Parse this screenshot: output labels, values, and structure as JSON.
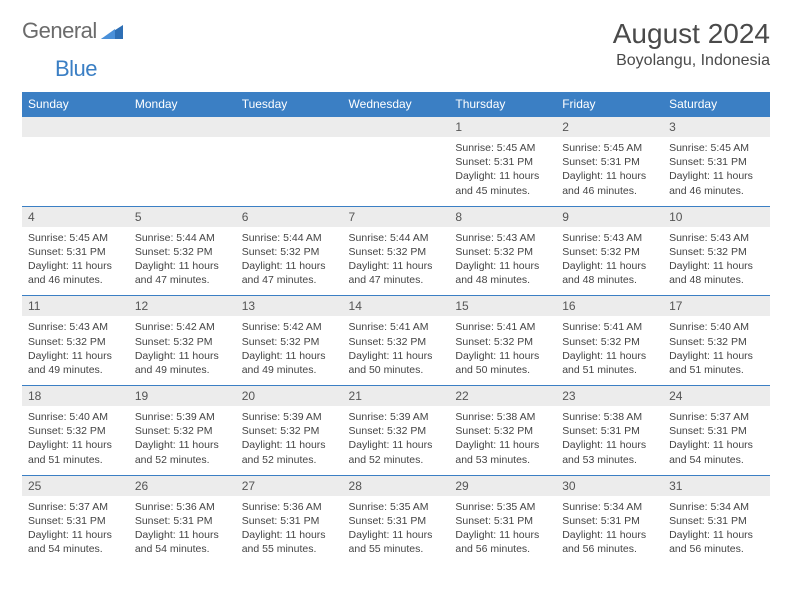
{
  "brand": {
    "part1": "General",
    "part2": "Blue"
  },
  "title": "August 2024",
  "location": "Boyolangu, Indonesia",
  "colors": {
    "header_bg": "#3b7fc4",
    "header_text": "#ffffff",
    "daynum_bg": "#ececec",
    "border": "#3b7fc4",
    "text": "#444444",
    "brand_gray": "#6b6b6b",
    "brand_blue": "#3b7fc4"
  },
  "daysOfWeek": [
    "Sunday",
    "Monday",
    "Tuesday",
    "Wednesday",
    "Thursday",
    "Friday",
    "Saturday"
  ],
  "weeks": [
    {
      "nums": [
        "",
        "",
        "",
        "",
        "1",
        "2",
        "3"
      ],
      "cells": [
        null,
        null,
        null,
        null,
        {
          "sunrise": "Sunrise: 5:45 AM",
          "sunset": "Sunset: 5:31 PM",
          "daylight": "Daylight: 11 hours and 45 minutes."
        },
        {
          "sunrise": "Sunrise: 5:45 AM",
          "sunset": "Sunset: 5:31 PM",
          "daylight": "Daylight: 11 hours and 46 minutes."
        },
        {
          "sunrise": "Sunrise: 5:45 AM",
          "sunset": "Sunset: 5:31 PM",
          "daylight": "Daylight: 11 hours and 46 minutes."
        }
      ]
    },
    {
      "nums": [
        "4",
        "5",
        "6",
        "7",
        "8",
        "9",
        "10"
      ],
      "cells": [
        {
          "sunrise": "Sunrise: 5:45 AM",
          "sunset": "Sunset: 5:31 PM",
          "daylight": "Daylight: 11 hours and 46 minutes."
        },
        {
          "sunrise": "Sunrise: 5:44 AM",
          "sunset": "Sunset: 5:32 PM",
          "daylight": "Daylight: 11 hours and 47 minutes."
        },
        {
          "sunrise": "Sunrise: 5:44 AM",
          "sunset": "Sunset: 5:32 PM",
          "daylight": "Daylight: 11 hours and 47 minutes."
        },
        {
          "sunrise": "Sunrise: 5:44 AM",
          "sunset": "Sunset: 5:32 PM",
          "daylight": "Daylight: 11 hours and 47 minutes."
        },
        {
          "sunrise": "Sunrise: 5:43 AM",
          "sunset": "Sunset: 5:32 PM",
          "daylight": "Daylight: 11 hours and 48 minutes."
        },
        {
          "sunrise": "Sunrise: 5:43 AM",
          "sunset": "Sunset: 5:32 PM",
          "daylight": "Daylight: 11 hours and 48 minutes."
        },
        {
          "sunrise": "Sunrise: 5:43 AM",
          "sunset": "Sunset: 5:32 PM",
          "daylight": "Daylight: 11 hours and 48 minutes."
        }
      ]
    },
    {
      "nums": [
        "11",
        "12",
        "13",
        "14",
        "15",
        "16",
        "17"
      ],
      "cells": [
        {
          "sunrise": "Sunrise: 5:43 AM",
          "sunset": "Sunset: 5:32 PM",
          "daylight": "Daylight: 11 hours and 49 minutes."
        },
        {
          "sunrise": "Sunrise: 5:42 AM",
          "sunset": "Sunset: 5:32 PM",
          "daylight": "Daylight: 11 hours and 49 minutes."
        },
        {
          "sunrise": "Sunrise: 5:42 AM",
          "sunset": "Sunset: 5:32 PM",
          "daylight": "Daylight: 11 hours and 49 minutes."
        },
        {
          "sunrise": "Sunrise: 5:41 AM",
          "sunset": "Sunset: 5:32 PM",
          "daylight": "Daylight: 11 hours and 50 minutes."
        },
        {
          "sunrise": "Sunrise: 5:41 AM",
          "sunset": "Sunset: 5:32 PM",
          "daylight": "Daylight: 11 hours and 50 minutes."
        },
        {
          "sunrise": "Sunrise: 5:41 AM",
          "sunset": "Sunset: 5:32 PM",
          "daylight": "Daylight: 11 hours and 51 minutes."
        },
        {
          "sunrise": "Sunrise: 5:40 AM",
          "sunset": "Sunset: 5:32 PM",
          "daylight": "Daylight: 11 hours and 51 minutes."
        }
      ]
    },
    {
      "nums": [
        "18",
        "19",
        "20",
        "21",
        "22",
        "23",
        "24"
      ],
      "cells": [
        {
          "sunrise": "Sunrise: 5:40 AM",
          "sunset": "Sunset: 5:32 PM",
          "daylight": "Daylight: 11 hours and 51 minutes."
        },
        {
          "sunrise": "Sunrise: 5:39 AM",
          "sunset": "Sunset: 5:32 PM",
          "daylight": "Daylight: 11 hours and 52 minutes."
        },
        {
          "sunrise": "Sunrise: 5:39 AM",
          "sunset": "Sunset: 5:32 PM",
          "daylight": "Daylight: 11 hours and 52 minutes."
        },
        {
          "sunrise": "Sunrise: 5:39 AM",
          "sunset": "Sunset: 5:32 PM",
          "daylight": "Daylight: 11 hours and 52 minutes."
        },
        {
          "sunrise": "Sunrise: 5:38 AM",
          "sunset": "Sunset: 5:32 PM",
          "daylight": "Daylight: 11 hours and 53 minutes."
        },
        {
          "sunrise": "Sunrise: 5:38 AM",
          "sunset": "Sunset: 5:31 PM",
          "daylight": "Daylight: 11 hours and 53 minutes."
        },
        {
          "sunrise": "Sunrise: 5:37 AM",
          "sunset": "Sunset: 5:31 PM",
          "daylight": "Daylight: 11 hours and 54 minutes."
        }
      ]
    },
    {
      "nums": [
        "25",
        "26",
        "27",
        "28",
        "29",
        "30",
        "31"
      ],
      "cells": [
        {
          "sunrise": "Sunrise: 5:37 AM",
          "sunset": "Sunset: 5:31 PM",
          "daylight": "Daylight: 11 hours and 54 minutes."
        },
        {
          "sunrise": "Sunrise: 5:36 AM",
          "sunset": "Sunset: 5:31 PM",
          "daylight": "Daylight: 11 hours and 54 minutes."
        },
        {
          "sunrise": "Sunrise: 5:36 AM",
          "sunset": "Sunset: 5:31 PM",
          "daylight": "Daylight: 11 hours and 55 minutes."
        },
        {
          "sunrise": "Sunrise: 5:35 AM",
          "sunset": "Sunset: 5:31 PM",
          "daylight": "Daylight: 11 hours and 55 minutes."
        },
        {
          "sunrise": "Sunrise: 5:35 AM",
          "sunset": "Sunset: 5:31 PM",
          "daylight": "Daylight: 11 hours and 56 minutes."
        },
        {
          "sunrise": "Sunrise: 5:34 AM",
          "sunset": "Sunset: 5:31 PM",
          "daylight": "Daylight: 11 hours and 56 minutes."
        },
        {
          "sunrise": "Sunrise: 5:34 AM",
          "sunset": "Sunset: 5:31 PM",
          "daylight": "Daylight: 11 hours and 56 minutes."
        }
      ]
    }
  ]
}
